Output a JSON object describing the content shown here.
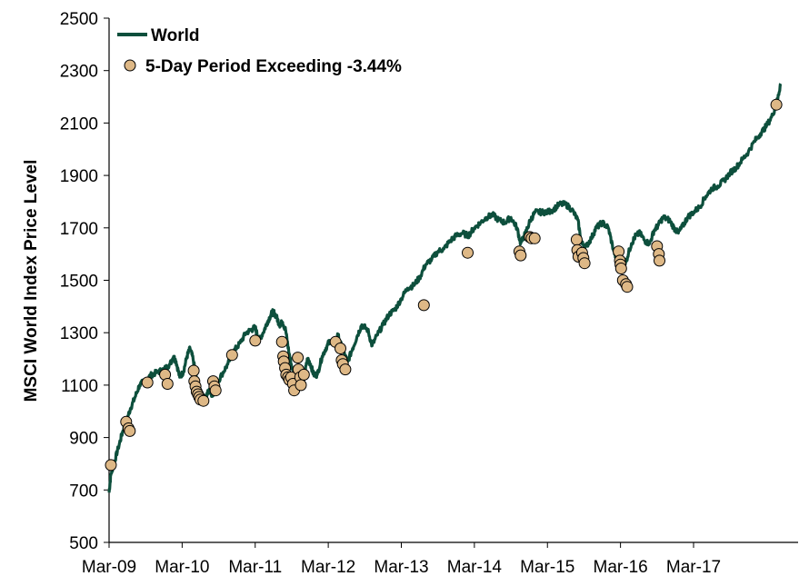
{
  "chart_data": {
    "type": "line",
    "ylabel": "MSCI World Index Price Level",
    "xlabel": "",
    "ylim": [
      500,
      2500
    ],
    "yticks": [
      500,
      700,
      900,
      1100,
      1300,
      1500,
      1700,
      1900,
      2100,
      2300,
      2500
    ],
    "x_axis_months": [
      0,
      106
    ],
    "x_ticks": [
      {
        "label": "Mar-09",
        "month": 0
      },
      {
        "label": "Mar-10",
        "month": 12
      },
      {
        "label": "Mar-11",
        "month": 24
      },
      {
        "label": "Mar-12",
        "month": 36
      },
      {
        "label": "Mar-13",
        "month": 48
      },
      {
        "label": "Mar-14",
        "month": 60
      },
      {
        "label": "Mar-15",
        "month": 72
      },
      {
        "label": "Mar-16",
        "month": 84
      },
      {
        "label": "Mar-17",
        "month": 96
      }
    ],
    "grid": false,
    "legend_position": "top-left",
    "colors": {
      "line": "#0d4f3c",
      "marker_fill": "#deb886",
      "marker_stroke": "#000000"
    },
    "series": [
      {
        "name": "World",
        "type": "line",
        "points": [
          [
            0,
            690
          ],
          [
            0.3,
            760
          ],
          [
            0.8,
            800
          ],
          [
            1.5,
            860
          ],
          [
            2.2,
            920
          ],
          [
            2.8,
            960
          ],
          [
            3.5,
            1010
          ],
          [
            4.2,
            1050
          ],
          [
            5,
            1100
          ],
          [
            6,
            1120
          ],
          [
            7,
            1140
          ],
          [
            8,
            1150
          ],
          [
            9,
            1160
          ],
          [
            10,
            1180
          ],
          [
            10.6,
            1210
          ],
          [
            11,
            1190
          ],
          [
            11.6,
            1130
          ],
          [
            12.2,
            1150
          ],
          [
            12.8,
            1210
          ],
          [
            13.3,
            1240
          ],
          [
            13.8,
            1200
          ],
          [
            14.4,
            1120
          ],
          [
            15,
            1060
          ],
          [
            15.8,
            1050
          ],
          [
            16.4,
            1080
          ],
          [
            17,
            1060
          ],
          [
            17.6,
            1100
          ],
          [
            18.5,
            1140
          ],
          [
            19.5,
            1180
          ],
          [
            20.5,
            1230
          ],
          [
            21.5,
            1260
          ],
          [
            22.5,
            1300
          ],
          [
            23.3,
            1310
          ],
          [
            24,
            1320
          ],
          [
            24.6,
            1270
          ],
          [
            25.3,
            1300
          ],
          [
            26,
            1340
          ],
          [
            26.6,
            1370
          ],
          [
            27,
            1380
          ],
          [
            27.5,
            1360
          ],
          [
            28,
            1330
          ],
          [
            28.5,
            1340
          ],
          [
            29,
            1310
          ],
          [
            29.5,
            1230
          ],
          [
            30.1,
            1160
          ],
          [
            30.8,
            1150
          ],
          [
            31.5,
            1120
          ],
          [
            32.1,
            1140
          ],
          [
            32.6,
            1200
          ],
          [
            33.1,
            1180
          ],
          [
            33.6,
            1140
          ],
          [
            34.2,
            1140
          ],
          [
            35,
            1210
          ],
          [
            35.8,
            1250
          ],
          [
            36.3,
            1270
          ],
          [
            37,
            1260
          ],
          [
            37.6,
            1290
          ],
          [
            38.4,
            1230
          ],
          [
            39.2,
            1190
          ],
          [
            40,
            1240
          ],
          [
            40.8,
            1290
          ],
          [
            41.5,
            1330
          ],
          [
            42.5,
            1310
          ],
          [
            43.2,
            1250
          ],
          [
            44,
            1290
          ],
          [
            45,
            1330
          ],
          [
            46,
            1370
          ],
          [
            47,
            1390
          ],
          [
            48,
            1430
          ],
          [
            49,
            1470
          ],
          [
            50,
            1480
          ],
          [
            51,
            1510
          ],
          [
            52,
            1560
          ],
          [
            53,
            1580
          ],
          [
            54,
            1610
          ],
          [
            55,
            1620
          ],
          [
            56,
            1650
          ],
          [
            57,
            1670
          ],
          [
            58,
            1680
          ],
          [
            59,
            1670
          ],
          [
            60,
            1700
          ],
          [
            61,
            1720
          ],
          [
            62,
            1740
          ],
          [
            63,
            1750
          ],
          [
            64,
            1730
          ],
          [
            65,
            1720
          ],
          [
            66,
            1740
          ],
          [
            67,
            1700
          ],
          [
            67.6,
            1640
          ],
          [
            68.4,
            1680
          ],
          [
            69.2,
            1730
          ],
          [
            70,
            1760
          ],
          [
            71,
            1760
          ],
          [
            72,
            1760
          ],
          [
            73,
            1770
          ],
          [
            74,
            1790
          ],
          [
            75,
            1790
          ],
          [
            76,
            1770
          ],
          [
            77,
            1730
          ],
          [
            77.6,
            1640
          ],
          [
            78.4,
            1630
          ],
          [
            79.2,
            1660
          ],
          [
            80,
            1700
          ],
          [
            81,
            1720
          ],
          [
            82,
            1700
          ],
          [
            82.8,
            1620
          ],
          [
            83.5,
            1570
          ],
          [
            84.3,
            1540
          ],
          [
            85,
            1580
          ],
          [
            85.8,
            1640
          ],
          [
            86.5,
            1670
          ],
          [
            87.2,
            1680
          ],
          [
            88,
            1650
          ],
          [
            88.8,
            1640
          ],
          [
            89.5,
            1690
          ],
          [
            90.2,
            1710
          ],
          [
            91,
            1740
          ],
          [
            92,
            1730
          ],
          [
            92.8,
            1700
          ],
          [
            93.5,
            1680
          ],
          [
            94.3,
            1710
          ],
          [
            95,
            1740
          ],
          [
            96,
            1760
          ],
          [
            97,
            1780
          ],
          [
            98,
            1820
          ],
          [
            99,
            1850
          ],
          [
            100,
            1860
          ],
          [
            101,
            1880
          ],
          [
            102,
            1910
          ],
          [
            103,
            1930
          ],
          [
            104,
            1960
          ],
          [
            105,
            1990
          ],
          [
            106,
            2030
          ],
          [
            107,
            2060
          ],
          [
            108,
            2090
          ],
          [
            109,
            2130
          ],
          [
            109.8,
            2190
          ],
          [
            110.3,
            2250
          ]
        ]
      },
      {
        "name": "5-Day Period Exceeding -3.44%",
        "type": "scatter",
        "points": [
          [
            0.3,
            795
          ],
          [
            2.8,
            960
          ],
          [
            3.2,
            935
          ],
          [
            3.4,
            925
          ],
          [
            6.3,
            1110
          ],
          [
            9.2,
            1140
          ],
          [
            9.6,
            1105
          ],
          [
            13.9,
            1155
          ],
          [
            14.0,
            1115
          ],
          [
            14.2,
            1095
          ],
          [
            14.4,
            1075
          ],
          [
            14.6,
            1065
          ],
          [
            14.8,
            1055
          ],
          [
            15.0,
            1045
          ],
          [
            15.5,
            1040
          ],
          [
            17.1,
            1115
          ],
          [
            17.3,
            1095
          ],
          [
            17.5,
            1080
          ],
          [
            20.2,
            1215
          ],
          [
            24.0,
            1270
          ],
          [
            28.4,
            1265
          ],
          [
            28.6,
            1210
          ],
          [
            28.7,
            1190
          ],
          [
            28.9,
            1165
          ],
          [
            29.1,
            1140
          ],
          [
            29.4,
            1130
          ],
          [
            29.6,
            1120
          ],
          [
            29.9,
            1130
          ],
          [
            30.2,
            1105
          ],
          [
            30.4,
            1080
          ],
          [
            31.0,
            1205
          ],
          [
            31.1,
            1160
          ],
          [
            31.4,
            1130
          ],
          [
            31.5,
            1100
          ],
          [
            32.0,
            1140
          ],
          [
            37.2,
            1265
          ],
          [
            38.0,
            1240
          ],
          [
            38.2,
            1195
          ],
          [
            38.4,
            1180
          ],
          [
            38.8,
            1160
          ],
          [
            51.7,
            1405
          ],
          [
            58.9,
            1605
          ],
          [
            67.4,
            1610
          ],
          [
            67.6,
            1595
          ],
          [
            69.1,
            1665
          ],
          [
            69.4,
            1660
          ],
          [
            69.9,
            1660
          ],
          [
            76.8,
            1655
          ],
          [
            76.9,
            1615
          ],
          [
            77.1,
            1590
          ],
          [
            77.7,
            1605
          ],
          [
            77.9,
            1585
          ],
          [
            78.1,
            1565
          ],
          [
            83.7,
            1610
          ],
          [
            83.9,
            1575
          ],
          [
            84.0,
            1560
          ],
          [
            84.1,
            1545
          ],
          [
            84.4,
            1500
          ],
          [
            84.9,
            1485
          ],
          [
            85.1,
            1475
          ],
          [
            90.0,
            1630
          ],
          [
            90.3,
            1600
          ],
          [
            90.4,
            1575
          ],
          [
            109.6,
            2170
          ]
        ]
      }
    ]
  }
}
